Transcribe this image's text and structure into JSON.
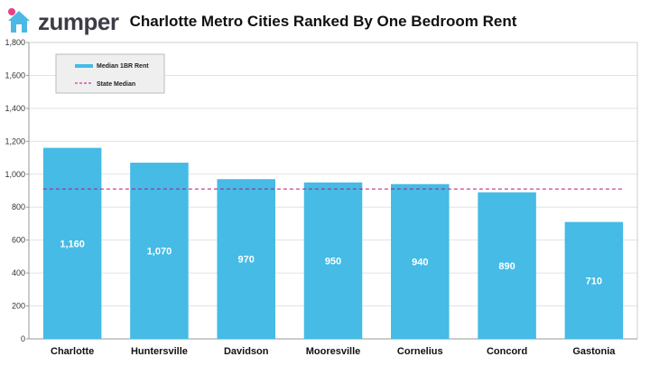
{
  "logo": {
    "text": "zumper",
    "icon": "house-pin-icon",
    "color": "#4cb8e4",
    "accent": "#e8417f"
  },
  "chart_data": {
    "type": "bar",
    "title": "Charlotte Metro Cities Ranked By One Bedroom Rent",
    "categories": [
      "Charlotte",
      "Huntersville",
      "Davidson",
      "Mooresville",
      "Cornelius",
      "Concord",
      "Gastonia"
    ],
    "series": [
      {
        "name": "Median 1BR Rent",
        "values": [
          1160,
          1070,
          970,
          950,
          940,
          890,
          710
        ],
        "labels": [
          "1,160",
          "1,070",
          "970",
          "950",
          "940",
          "890",
          "710"
        ],
        "color": "#45bbe6"
      }
    ],
    "reference_line": {
      "name": "State Median",
      "value": 910,
      "color": "#c0107a",
      "style": "dashed"
    },
    "ylim": [
      0,
      1800
    ],
    "yticks": [
      0,
      200,
      400,
      600,
      800,
      1000,
      1200,
      1400,
      1600,
      1800
    ],
    "ytick_labels": [
      "0",
      "200",
      "400",
      "600",
      "800",
      "1,000",
      "1,200",
      "1,400",
      "1,600",
      "1,800"
    ],
    "xlabel": "",
    "ylabel": "",
    "grid": true,
    "legend": "top-left"
  }
}
